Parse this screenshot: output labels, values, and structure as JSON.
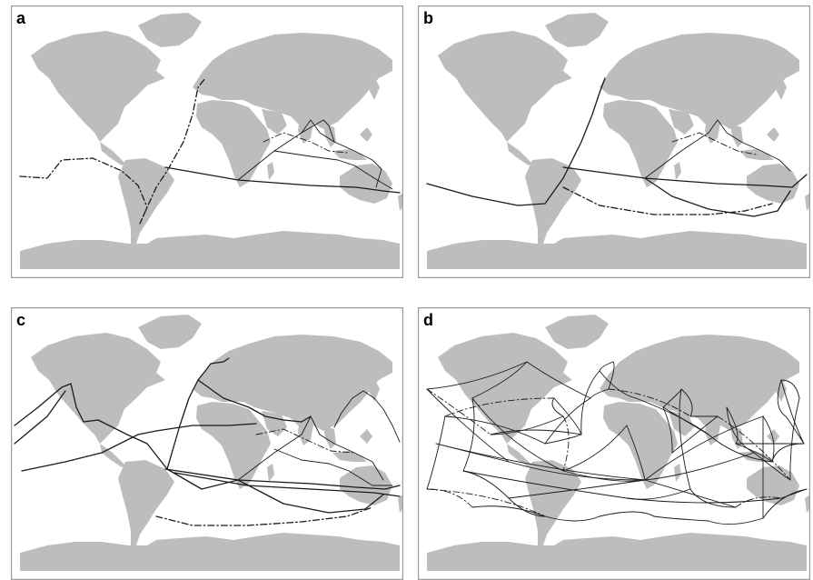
{
  "panels": [
    {
      "id": "a",
      "label": "a",
      "density": "sparse"
    },
    {
      "id": "b",
      "label": "b",
      "density": "sparse"
    },
    {
      "id": "c",
      "label": "c",
      "density": "moderate"
    },
    {
      "id": "d",
      "label": "d",
      "density": "dense"
    }
  ],
  "colors": {
    "land": "#bdbdbd",
    "route": "#1a1a1a",
    "frame": "#9a9a9a",
    "ocean": "#ffffff"
  }
}
